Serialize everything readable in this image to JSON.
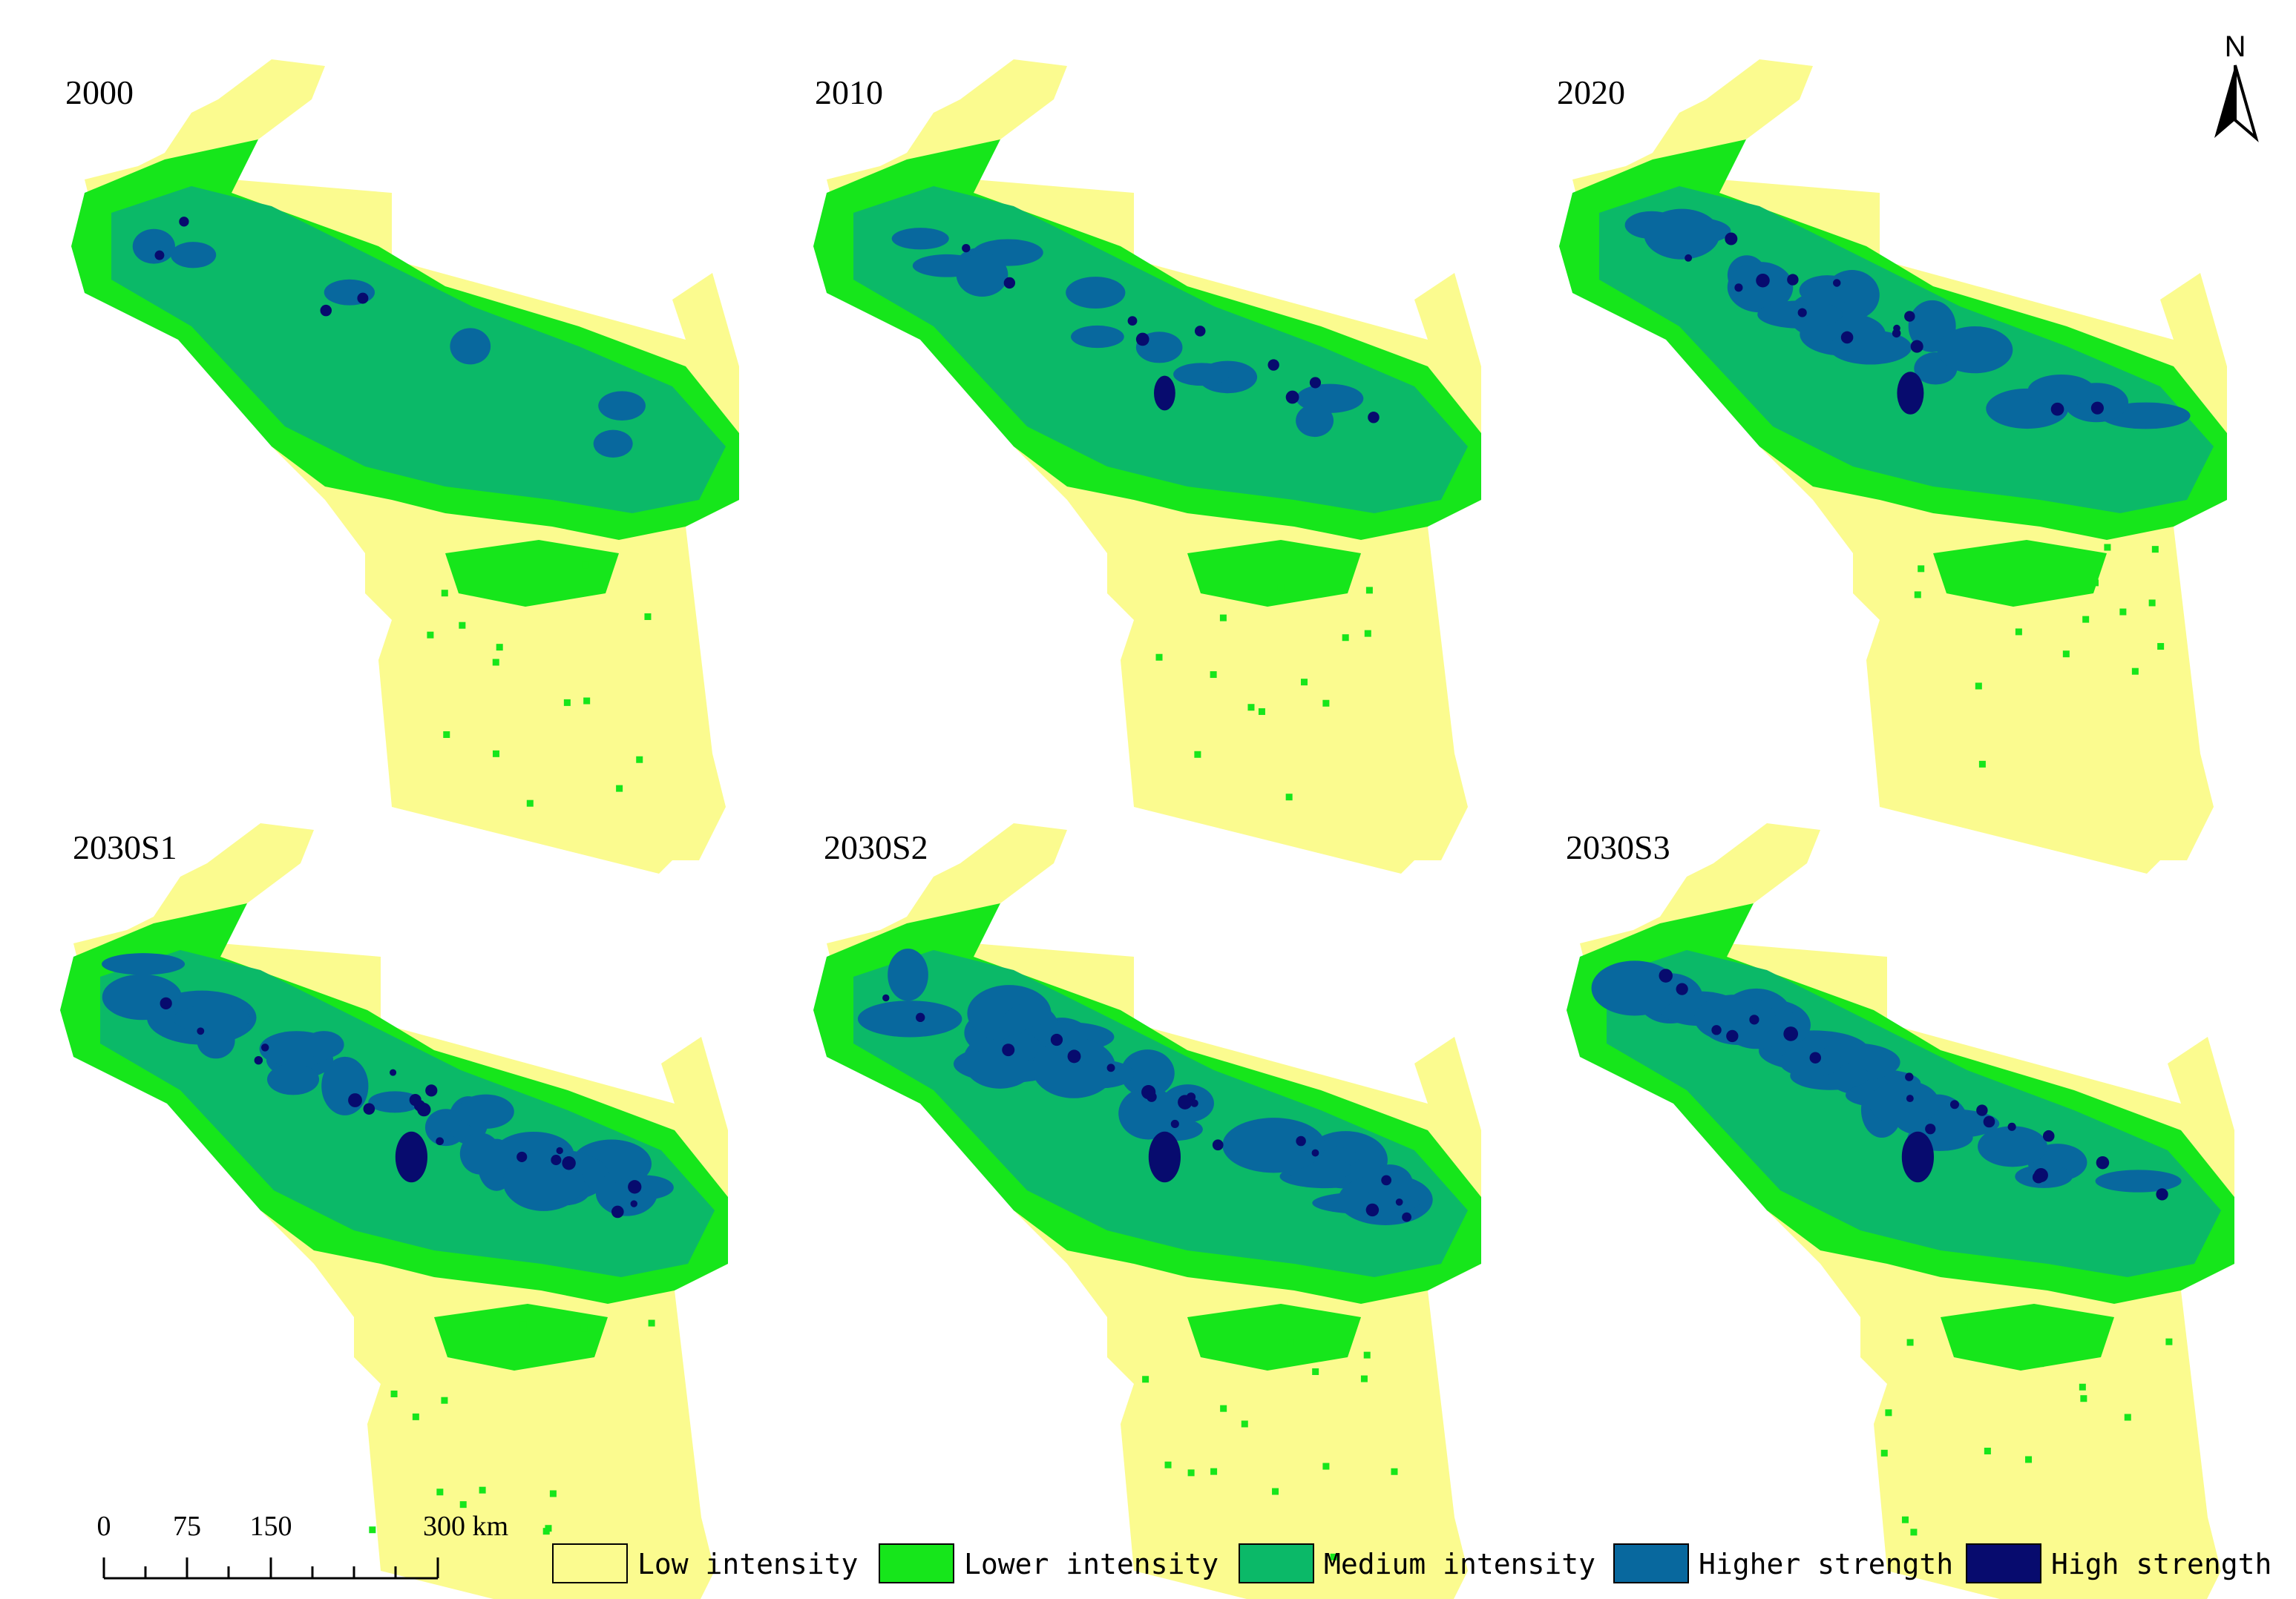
{
  "colors": {
    "low": "#FBFB8F",
    "lower": "#16E61B",
    "medium": "#0BB968",
    "higher": "#08689E",
    "high": "#070B6E",
    "outline": "#000000"
  },
  "panels": [
    {
      "id": "p2000",
      "title": "2000",
      "level": 0
    },
    {
      "id": "p2010",
      "title": "2010",
      "level": 1
    },
    {
      "id": "p2020",
      "title": "2020",
      "level": 2
    },
    {
      "id": "p2030s1",
      "title": "2030S1",
      "level": 3
    },
    {
      "id": "p2030s2",
      "title": "2030S2",
      "level": 3
    },
    {
      "id": "p2030s3",
      "title": "2030S3",
      "level": 3
    }
  ],
  "north_arrow": {
    "label": "N"
  },
  "scale_bar": {
    "labels": [
      "0",
      "75",
      "150",
      "300 km"
    ]
  },
  "legend": [
    {
      "key": "low",
      "label": "Low intensity",
      "color": "#FBFB8F"
    },
    {
      "key": "lower",
      "label": "Lower intensity",
      "color": "#16E61B"
    },
    {
      "key": "medium",
      "label": "Medium intensity",
      "color": "#0BB968"
    },
    {
      "key": "higher",
      "label": "Higher strength",
      "color": "#08689E"
    },
    {
      "key": "high",
      "label": "High strength",
      "color": "#070B6E"
    }
  ]
}
